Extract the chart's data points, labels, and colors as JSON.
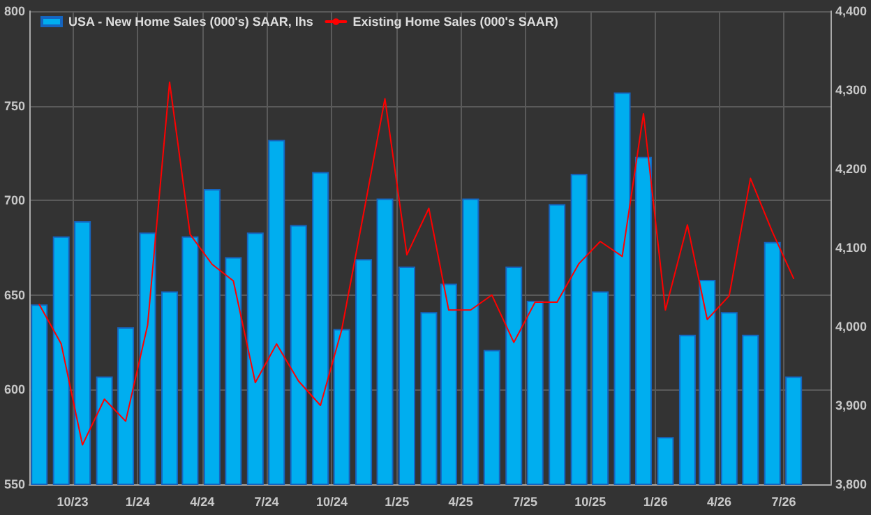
{
  "chart_data": {
    "type": "bar",
    "x": [
      "2023-08-15",
      "2023-09-15",
      "2023-10-15",
      "2023-11-15",
      "2023-12-15",
      "2024-01-15",
      "2024-02-15",
      "2024-03-15",
      "2024-04-15",
      "2024-05-15",
      "2024-06-15",
      "2024-07-15",
      "2024-08-15",
      "2024-09-15",
      "2024-10-15",
      "2024-11-15",
      "2024-12-15",
      "2025-01-15",
      "2025-02-15",
      "2025-03-15",
      "2025-04-15",
      "2025-05-15",
      "2025-06-15",
      "2025-07-15",
      "2025-08-15",
      "2025-09-15",
      "2025-10-15",
      "2025-11-15",
      "2025-12-15",
      "2026-01-15",
      "2026-02-15",
      "2026-03-15",
      "2026-04-15",
      "2026-05-15",
      "2026-06-15",
      "2026-07-15"
    ],
    "series": [
      {
        "name": "USA - New Home Sales (000's) SAAR, lhs",
        "color": "#00aeef",
        "values": [
          645,
          681,
          689,
          607,
          633,
          683,
          652,
          681,
          706,
          670,
          683,
          732,
          687,
          715,
          632,
          669,
          701,
          665,
          641,
          656,
          701,
          621,
          665,
          647,
          698,
          714,
          652,
          757,
          723,
          575,
          629,
          658,
          641,
          629,
          678,
          607
        ]
      },
      {
        "name": "Existing Home Sales (000's SAAR)",
        "type": "line",
        "axis": "y2",
        "color": "#ff0000",
        "values": [
          4028,
          3978,
          3850,
          3908,
          3880,
          4002,
          4310,
          4117,
          4079,
          4058,
          3929,
          3978,
          3931,
          3900,
          3996,
          4144,
          4289,
          4091,
          4150,
          4021,
          4021,
          4040,
          3980,
          4031,
          4031,
          4080,
          4108,
          4089,
          4270,
          4021,
          4129,
          4009,
          4039,
          4188,
          4120,
          4061
        ]
      }
    ],
    "xlim": [
      "2023-08-01",
      "2026-09-06"
    ],
    "xticks": [
      {
        "value": "2023-10",
        "label": "10/23"
      },
      {
        "value": "2024-01",
        "label": "1/24"
      },
      {
        "value": "2024-04",
        "label": "4/24"
      },
      {
        "value": "2024-07",
        "label": "7/24"
      },
      {
        "value": "2024-10",
        "label": "10/24"
      },
      {
        "value": "2025-01",
        "label": "1/25"
      },
      {
        "value": "2025-04",
        "label": "4/25"
      },
      {
        "value": "2025-07",
        "label": "7/25"
      },
      {
        "value": "2025-10",
        "label": "10/25"
      },
      {
        "value": "2026-01",
        "label": "1/26"
      },
      {
        "value": "2026-04",
        "label": "4/26"
      },
      {
        "value": "2026-07",
        "label": "7/26"
      }
    ],
    "ylim": [
      550,
      800
    ],
    "yticks": [
      550,
      600,
      650,
      700,
      750,
      800
    ],
    "y2lim": [
      3800,
      4400
    ],
    "y2ticks": [
      {
        "value": 3800,
        "label": "3,800"
      },
      {
        "value": 3900,
        "label": "3,900"
      },
      {
        "value": 4000,
        "label": "4,000"
      },
      {
        "value": 4100,
        "label": "4,100"
      },
      {
        "value": 4200,
        "label": "4,200"
      },
      {
        "value": 4300,
        "label": "4,300"
      },
      {
        "value": 4400,
        "label": "4,400"
      }
    ],
    "grid": true,
    "legend": "top left",
    "marker": "none",
    "line_style": "solid"
  }
}
